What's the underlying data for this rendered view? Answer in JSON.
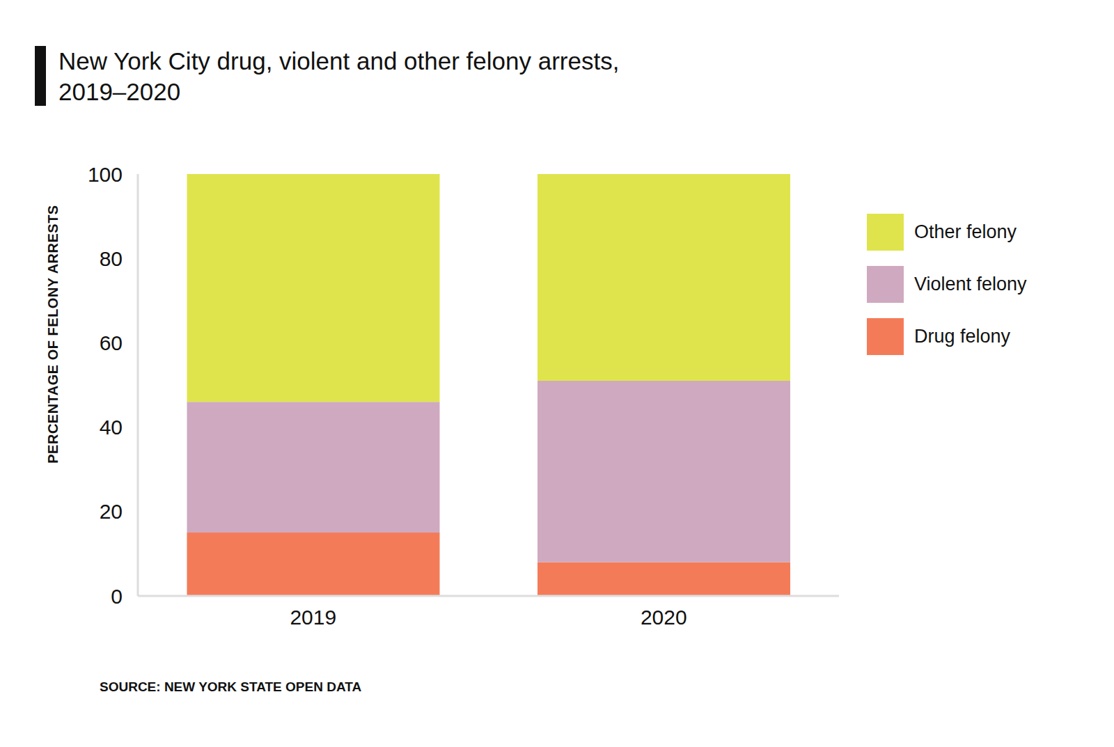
{
  "chart_data": {
    "type": "bar",
    "title": "New York City drug, violent and other felony arrests, 2019–2020",
    "y_label": "PERCENTAGE OF FELONY ARRESTS",
    "source": "SOURCE: NEW YORK STATE OPEN DATA",
    "categories": [
      "2019",
      "2020"
    ],
    "series": [
      {
        "name": "Drug felony",
        "color": "#f47b58",
        "values": [
          15,
          8
        ]
      },
      {
        "name": "Violent felony",
        "color": "#cfa9c0",
        "values": [
          31,
          43
        ]
      },
      {
        "name": "Other felony",
        "color": "#dfe44c",
        "values": [
          54,
          49
        ]
      }
    ],
    "stacked": true,
    "ylim": [
      0,
      100
    ],
    "yticks": [
      0,
      20,
      40,
      60,
      80,
      100
    ],
    "grid": false,
    "legend": "right"
  }
}
